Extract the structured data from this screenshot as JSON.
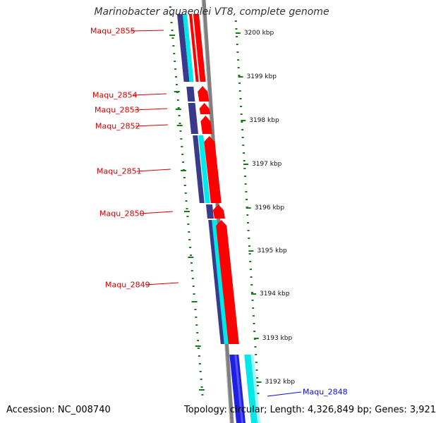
{
  "title": "Marinobacter aquaeolei VT8, complete genome",
  "footer": {
    "accession": "Accession: NC_008740",
    "summary": "Topology: circular; Length: 4,326,849 bp; Genes: 3,921"
  },
  "colors": {
    "forward_gene": "#ff0000",
    "reverse_gene": "#2020e0",
    "forward_cds": "#00e8e8",
    "reverse_cds": "#3a3a8a",
    "backbone": "#808080",
    "gc_tick": "#1a7a1a",
    "label_red": "#d40000",
    "label_blue": "#0a0ad0"
  },
  "scale_ticks": [
    "3200 kbp",
    "3199 kbp",
    "3198 kbp",
    "3197 kbp",
    "3196 kbp",
    "3195 kbp",
    "3194 kbp",
    "3193 kbp",
    "3192 kbp"
  ],
  "gene_labels": [
    {
      "name": "Maqu_2855",
      "strand": "red"
    },
    {
      "name": "Maqu_2854",
      "strand": "red"
    },
    {
      "name": "Maqu_2853",
      "strand": "red"
    },
    {
      "name": "Maqu_2852",
      "strand": "red"
    },
    {
      "name": "Maqu_2851",
      "strand": "red"
    },
    {
      "name": "Maqu_2850",
      "strand": "red"
    },
    {
      "name": "Maqu_2849",
      "strand": "red"
    },
    {
      "name": "Maqu_2848",
      "strand": "blue"
    }
  ]
}
